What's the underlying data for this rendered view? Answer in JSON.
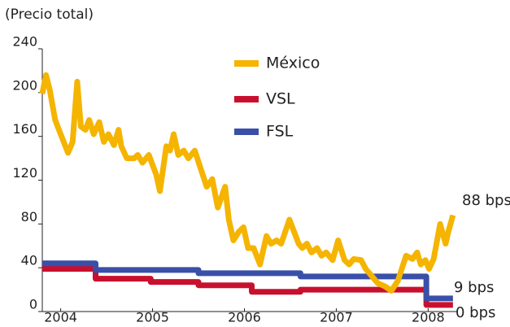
{
  "chart_data": {
    "type": "line",
    "y_label": "(Precio total)",
    "xlim": [
      2003.8,
      2008.28
    ],
    "xticks": [
      2004,
      2005,
      2006,
      2007,
      2008
    ],
    "ylim": [
      0,
      240
    ],
    "yticks": [
      0,
      40,
      80,
      120,
      160,
      200,
      240
    ],
    "legend": "upper center",
    "series": [
      {
        "name": "México",
        "color": "#f5b400",
        "x": [
          2003.8,
          2003.84,
          2003.88,
          2003.94,
          2004.0,
          2004.08,
          2004.13,
          2004.18,
          2004.22,
          2004.27,
          2004.31,
          2004.36,
          2004.42,
          2004.47,
          2004.52,
          2004.58,
          2004.63,
          2004.66,
          2004.72,
          2004.8,
          2004.84,
          2004.89,
          2004.96,
          2005.04,
          2005.08,
          2005.15,
          2005.19,
          2005.23,
          2005.28,
          2005.34,
          2005.39,
          2005.46,
          2005.53,
          2005.59,
          2005.65,
          2005.71,
          2005.74,
          2005.79,
          2005.83,
          2005.88,
          2005.94,
          2005.99,
          2006.04,
          2006.1,
          2006.17,
          2006.24,
          2006.29,
          2006.35,
          2006.4,
          2006.49,
          2006.54,
          2006.59,
          2006.63,
          2006.68,
          2006.73,
          2006.79,
          2006.84,
          2006.89,
          2006.96,
          2007.02,
          2007.09,
          2007.14,
          2007.19,
          2007.27,
          2007.32,
          2007.39,
          2007.45,
          2007.53,
          2007.6,
          2007.67,
          2007.76,
          2007.83,
          2007.88,
          2007.92,
          2007.97,
          2008.01,
          2008.06,
          2008.13,
          2008.19,
          2008.22,
          2008.27
        ],
        "values": [
          199,
          216,
          203,
          175,
          162,
          145,
          155,
          210,
          169,
          166,
          175,
          162,
          173,
          155,
          162,
          152,
          166,
          151,
          140,
          140,
          143,
          136,
          143,
          125,
          110,
          151,
          147,
          162,
          143,
          147,
          140,
          147,
          129,
          114,
          121,
          95,
          102,
          114,
          84,
          65,
          73,
          77,
          58,
          58,
          43,
          69,
          62,
          65,
          62,
          84,
          73,
          62,
          58,
          62,
          54,
          58,
          51,
          54,
          47,
          65,
          47,
          43,
          48,
          47,
          39,
          32,
          26,
          23,
          19,
          28,
          51,
          48,
          54,
          43,
          47,
          39,
          48,
          80,
          62,
          73,
          88
        ]
      },
      {
        "name": "VSL",
        "color": "#c8102e",
        "x": [
          2003.8,
          2004.38,
          2004.38,
          2004.98,
          2004.98,
          2005.5,
          2005.5,
          2006.08,
          2006.08,
          2006.61,
          2006.61,
          2007.98,
          2007.98,
          2008.27
        ],
        "values": [
          39,
          39,
          30,
          30,
          27,
          27,
          24,
          24,
          18,
          18,
          20,
          20,
          6,
          6
        ]
      },
      {
        "name": "FSL",
        "color": "#3a4fa8",
        "x": [
          2003.8,
          2004.38,
          2004.38,
          2005.5,
          2005.5,
          2006.61,
          2006.61,
          2007.98,
          2007.98,
          2008.27
        ],
        "values": [
          44,
          44,
          38,
          38,
          35,
          35,
          32,
          32,
          12,
          12
        ]
      }
    ],
    "annotations": [
      "88 bps",
      "9 bps",
      "0 bps"
    ]
  }
}
